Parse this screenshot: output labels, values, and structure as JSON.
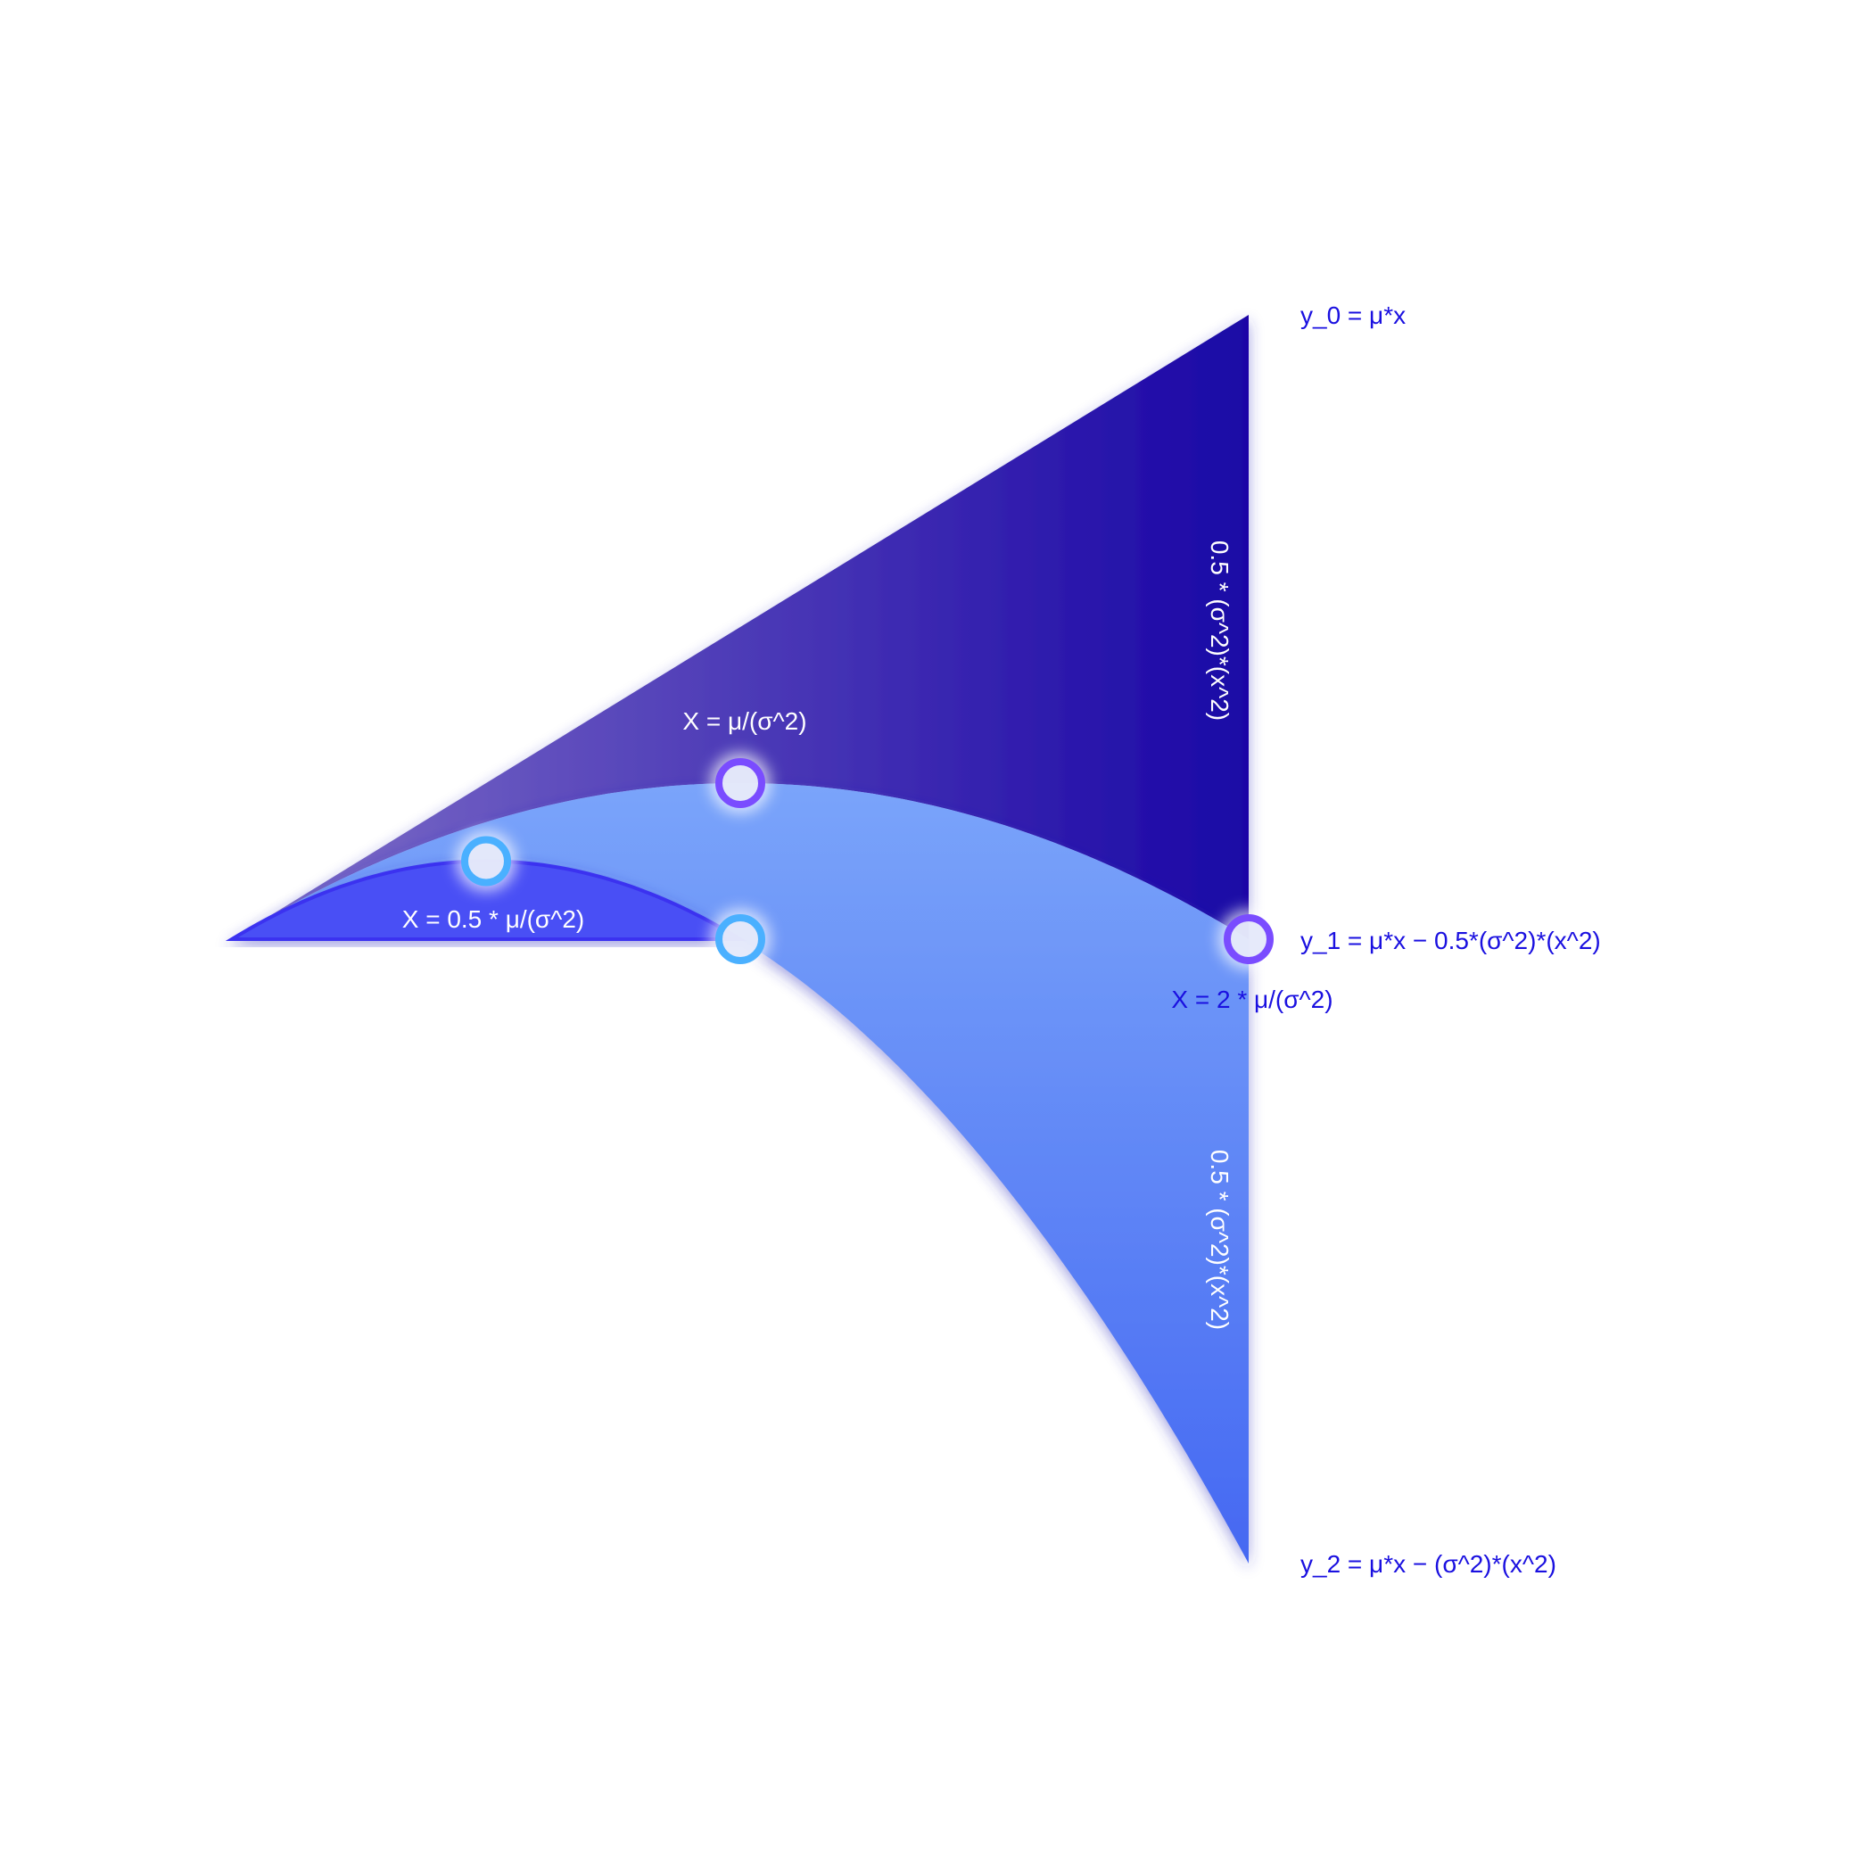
{
  "curves": {
    "y0": {
      "label": "y_0 = μ*x",
      "coeff": 0
    },
    "y1": {
      "label": "y_1 = μ*x − 0.5*(σ^2)*(x^2)",
      "coeff": 0.5
    },
    "y2": {
      "label": "y_2 = μ*x − (σ^2)*(x^2)",
      "coeff": 1
    }
  },
  "annotations": {
    "x_peak_y1": "X = μ/(σ^2)",
    "x_peak_y2": "X = 0.5 * μ/(σ^2)",
    "x_end": "X = 2 * μ/(σ^2)",
    "gap_upper": "0.5 * (σ^2)*(x^2)",
    "gap_lower": "0.5 * (σ^2)*(x^2)"
  },
  "points": [
    {
      "name": "y2-peak-point",
      "x": 0.5,
      "y": 0.25,
      "color": "#4ab0ff"
    },
    {
      "name": "y1-peak-point",
      "x": 1,
      "y": 0.5,
      "color": "#7a4cff"
    },
    {
      "name": "y2-root-point",
      "x": 1,
      "y": 0,
      "color": "#4ab0ff"
    },
    {
      "name": "y1-root-point",
      "x": 2,
      "y": 0,
      "color": "#7a4cff"
    }
  ],
  "x_range": [
    0,
    2
  ],
  "colors": {
    "upper_region_start": "#8070c8",
    "upper_region_end": "#1a06a6",
    "middle_region_top": "#7aa4fa",
    "middle_region_bottom": "#4568f2",
    "dome_region": "#4a50f5",
    "dome_stroke": "#3a30f0",
    "label_blue": "#1a10e0"
  }
}
